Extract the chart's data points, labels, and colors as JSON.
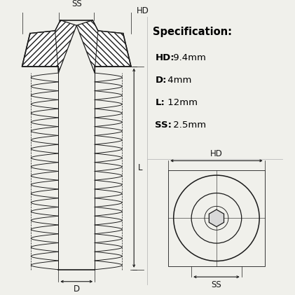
{
  "bg_color": "#f0f0eb",
  "line_color": "#1a1a1a",
  "spec_title": "Specification:",
  "spec_items": [
    {
      "label": "HD:",
      "value": " 9.4mm"
    },
    {
      "label": "D:",
      "value": " 4mm"
    },
    {
      "label": "L:",
      "value": " 12mm"
    },
    {
      "label": "SS:",
      "value": " 2.5mm"
    }
  ],
  "title_fontsize": 10.5,
  "spec_fontsize": 9.5,
  "dim_label_fontsize": 8.5
}
